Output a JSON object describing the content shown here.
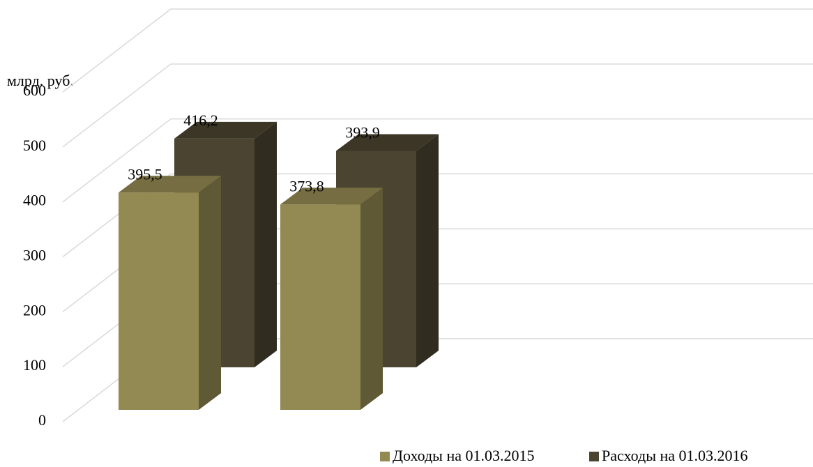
{
  "chart_data": {
    "type": "bar",
    "y_label": "млрд. руб.",
    "categories": [
      null,
      null
    ],
    "series": [
      {
        "name": "Доходы на 01.03.2015",
        "color": "#938953",
        "values": [
          395.5,
          373.8
        ],
        "value_labels": [
          "395,5",
          "373,8"
        ]
      },
      {
        "name": "Расходы на 01.03.2016",
        "color": "#4a4430",
        "values": [
          416.2,
          393.9
        ],
        "value_labels": [
          "416,2",
          "393,9"
        ]
      }
    ],
    "ylim": [
      0,
      600
    ],
    "yticks": [
      0,
      100,
      200,
      300,
      400,
      500,
      600
    ],
    "grid": true
  }
}
